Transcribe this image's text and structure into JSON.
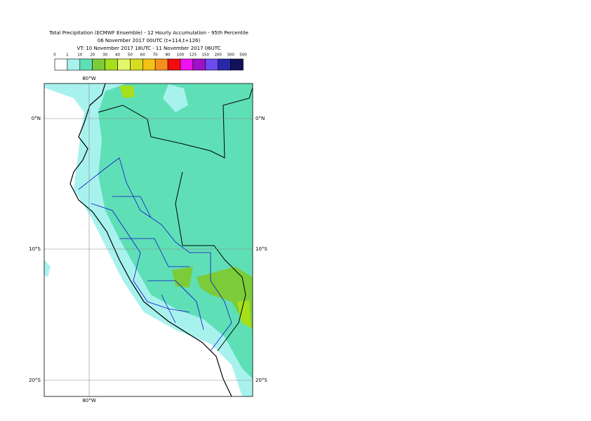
{
  "header": {
    "title_lines": [
      "Total Precipitation (ECMWF Ensemble) - 12 Hourly Accumulation - 95th Percentile",
      "06 November 2017 00UTC (t+114,t+126)",
      "VT: 10 November 2017 18UTC - 11 November 2017 06UTC"
    ]
  },
  "legend": {
    "labels": [
      "0",
      "1",
      "10",
      "20",
      "30",
      "40",
      "50",
      "60",
      "70",
      "80",
      "100",
      "125",
      "150",
      "200",
      "300",
      "500"
    ],
    "colors": [
      "#ffffff",
      "#a8f2ee",
      "#5fdfb6",
      "#7ccc3a",
      "#a6df1c",
      "#e4f76a",
      "#d6dc20",
      "#f3c117",
      "#f6901c",
      "#f20d0d",
      "#ee12ee",
      "#9c12c6",
      "#6c4cee",
      "#2828a8",
      "#12125a"
    ]
  },
  "map": {
    "lon_label": "80°W",
    "lat_labels": [
      "0°N",
      "10°S",
      "20°S"
    ]
  }
}
